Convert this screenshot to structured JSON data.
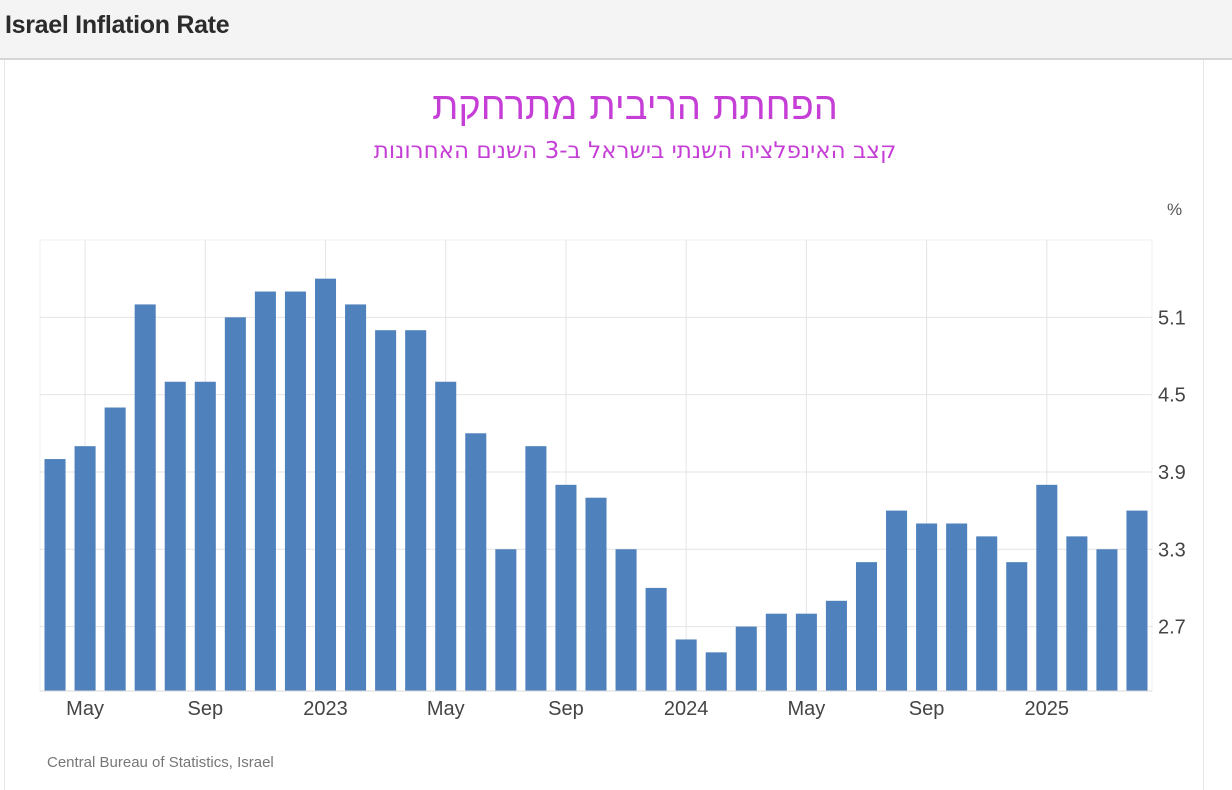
{
  "page": {
    "header_title": "Israel Inflation Rate",
    "source": "Central Bureau of Statistics, Israel"
  },
  "chart_data": {
    "type": "bar",
    "title": "הפחתת הריבית מתרחקת",
    "subtitle": "קצב האינפלציה השנתי בישראל ב-3 השנים האחרונות",
    "unit_label": "%",
    "xlabel": "",
    "ylabel": "",
    "ylim": [
      2.2,
      5.7
    ],
    "yticks": [
      2.7,
      3.3,
      3.9,
      4.5,
      5.1
    ],
    "ytick_labels": [
      "2.7",
      "3.3",
      "3.9",
      "4.5",
      "5.1"
    ],
    "x_tick_labels": [
      {
        "label": "May",
        "index": 1
      },
      {
        "label": "Sep",
        "index": 5
      },
      {
        "label": "2023",
        "index": 9
      },
      {
        "label": "May",
        "index": 13
      },
      {
        "label": "Sep",
        "index": 17
      },
      {
        "label": "2024",
        "index": 21
      },
      {
        "label": "May",
        "index": 25
      },
      {
        "label": "Sep",
        "index": 29
      },
      {
        "label": "2025",
        "index": 33
      }
    ],
    "categories": [
      "2022-04",
      "2022-05",
      "2022-06",
      "2022-07",
      "2022-08",
      "2022-09",
      "2022-10",
      "2022-11",
      "2022-12",
      "2023-01",
      "2023-02",
      "2023-03",
      "2023-04",
      "2023-05",
      "2023-06",
      "2023-07",
      "2023-08",
      "2023-09",
      "2023-10",
      "2023-11",
      "2023-12",
      "2024-01",
      "2024-02",
      "2024-03",
      "2024-04",
      "2024-05",
      "2024-06",
      "2024-07",
      "2024-08",
      "2024-09",
      "2024-10",
      "2024-11",
      "2024-12",
      "2025-01",
      "2025-02",
      "2025-03",
      "2025-04"
    ],
    "values": [
      4.0,
      4.1,
      4.4,
      5.2,
      4.6,
      4.6,
      5.1,
      5.3,
      5.3,
      5.4,
      5.2,
      5.0,
      5.0,
      4.6,
      4.2,
      3.3,
      4.1,
      3.8,
      3.7,
      3.3,
      3.0,
      2.6,
      2.5,
      2.7,
      2.8,
      2.8,
      2.9,
      3.2,
      3.6,
      3.5,
      3.5,
      3.4,
      3.2,
      3.8,
      3.4,
      3.3,
      3.6
    ],
    "bar_color": "#4f81bd",
    "grid": true,
    "legend": "none"
  }
}
